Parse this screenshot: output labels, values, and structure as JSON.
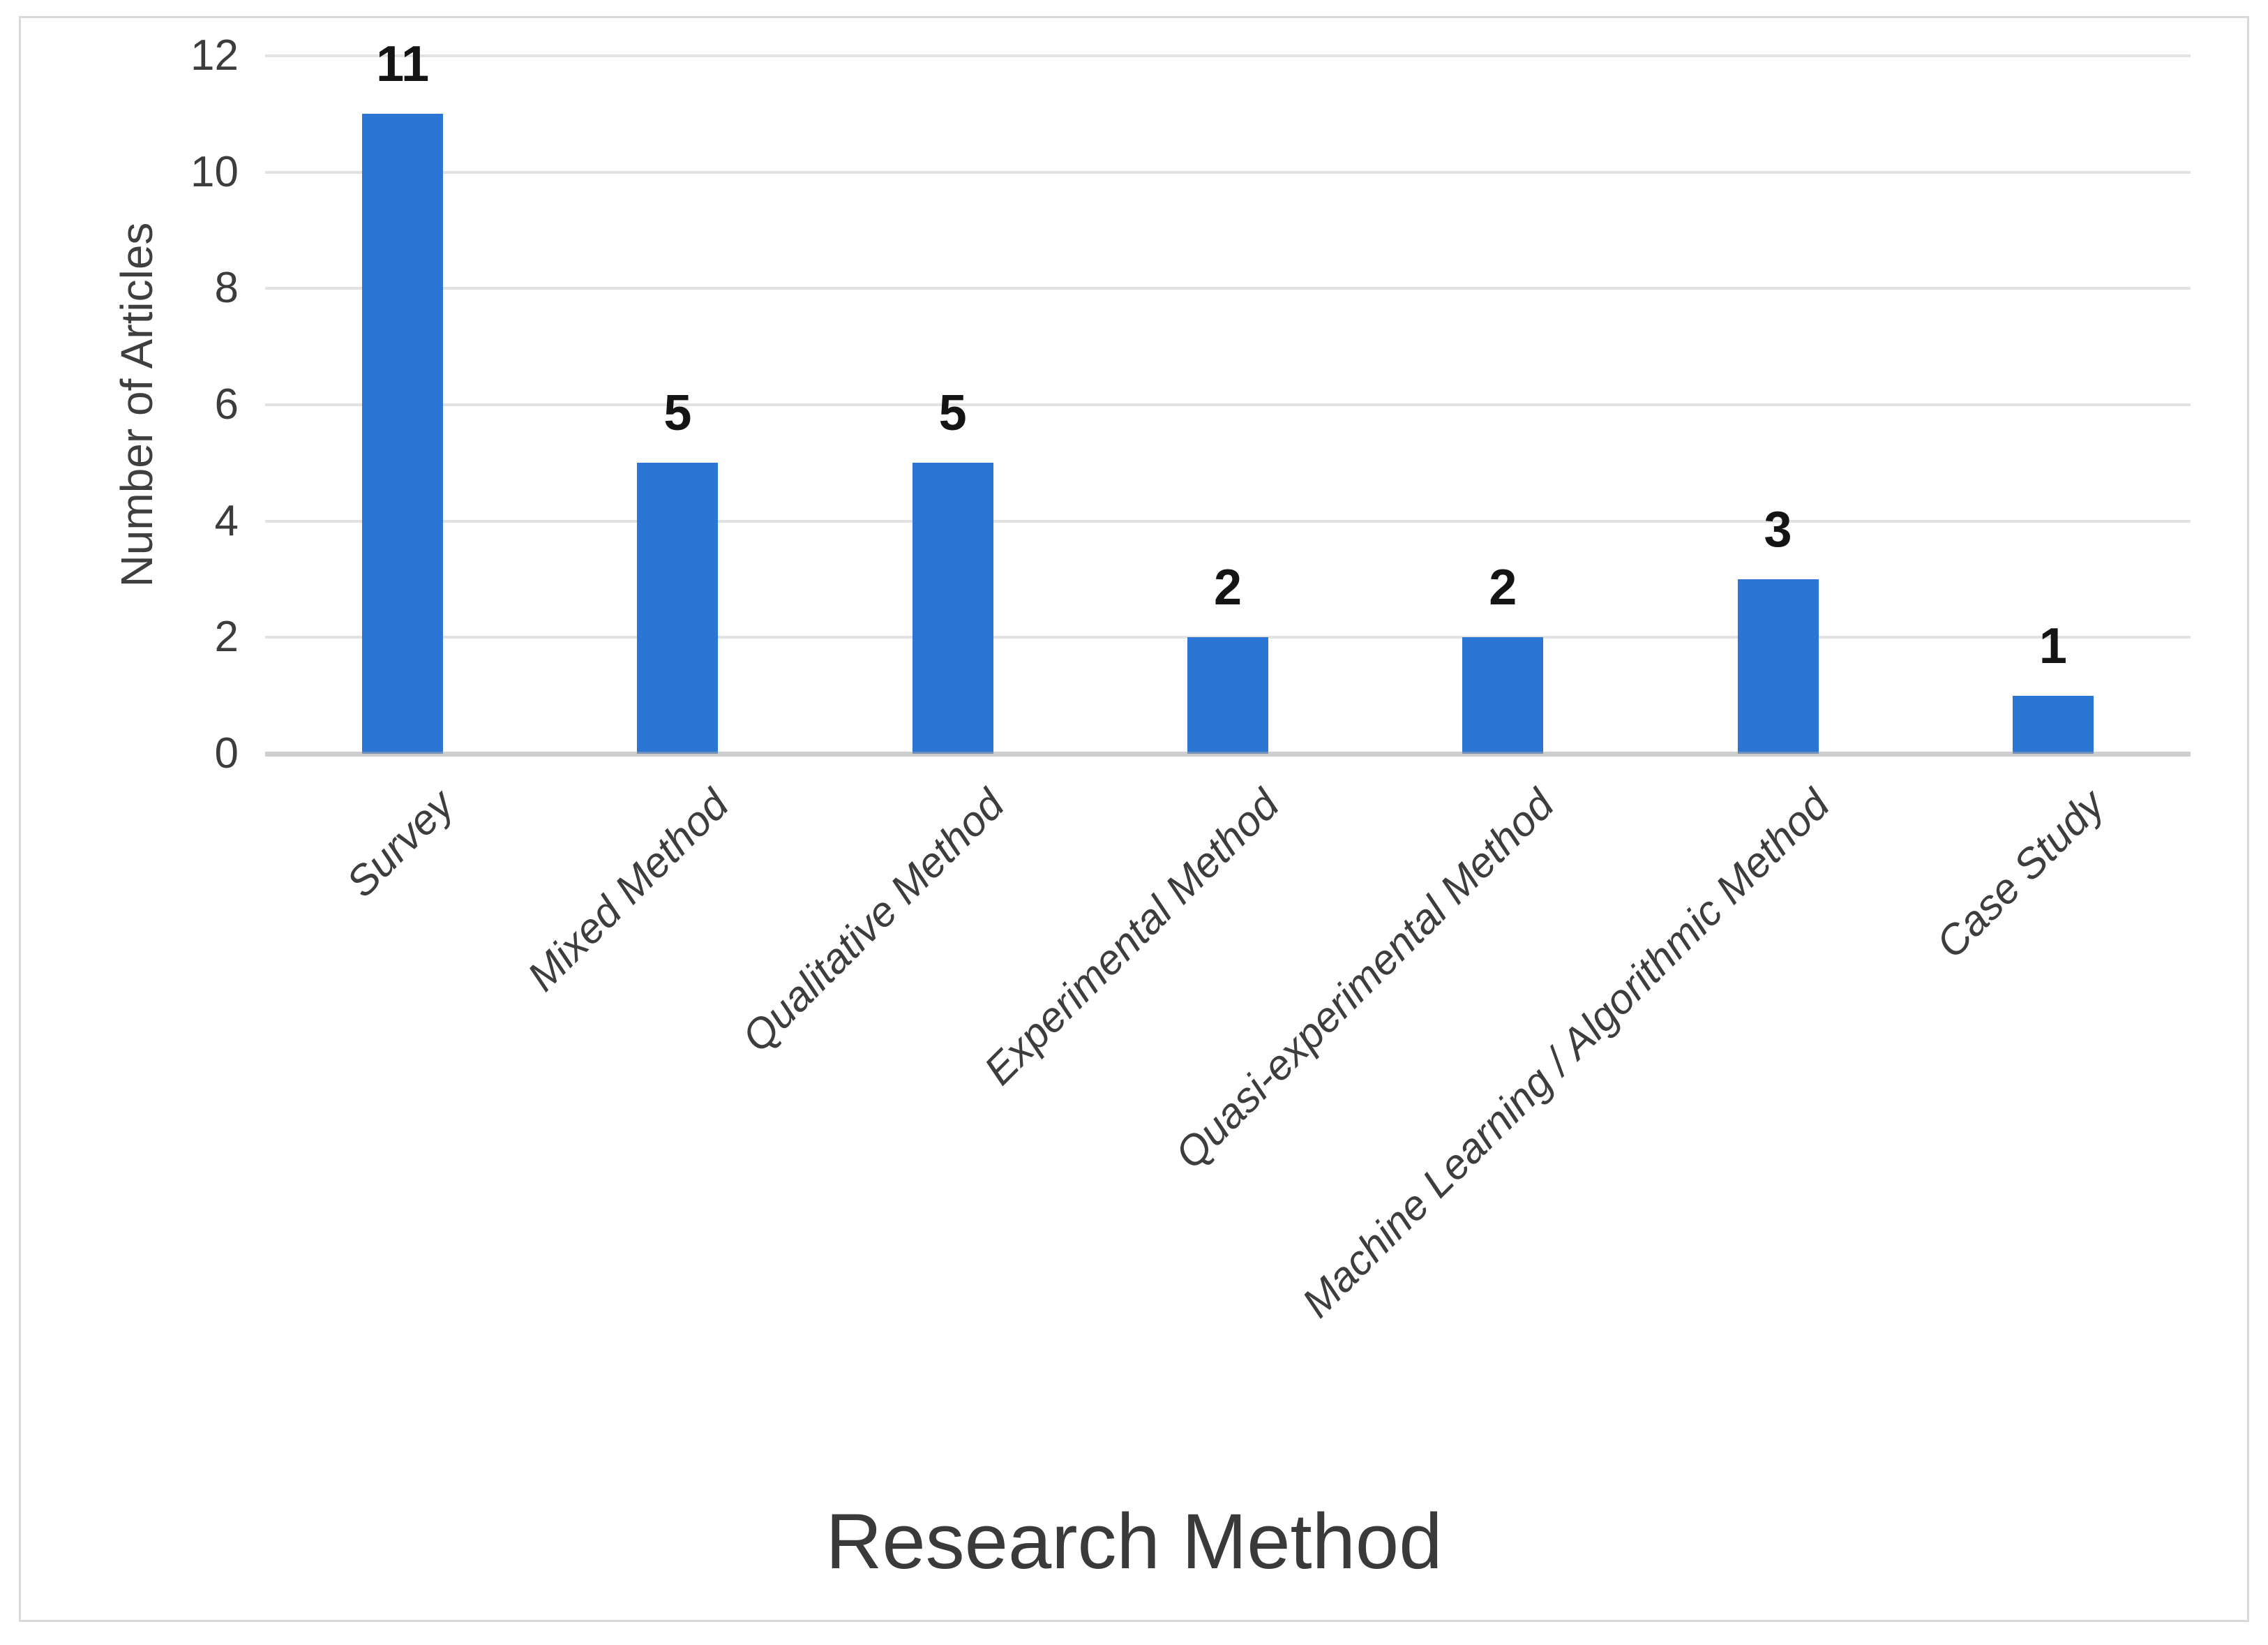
{
  "chart_data": {
    "type": "bar",
    "title": "",
    "categories": [
      "Survey",
      "Mixed Method",
      "Qualitative Method",
      "Experimental Method",
      "Quasi-experimental Method",
      "Machine Learning / Algorithmic Method",
      "Case Study"
    ],
    "values": [
      11,
      5,
      5,
      2,
      2,
      3,
      1
    ],
    "data_labels": [
      "11",
      "5",
      "5",
      "2",
      "2",
      "3",
      "1"
    ],
    "xlabel": "Research Method",
    "ylabel": "Number of Articles",
    "ylim": [
      0,
      12
    ],
    "yticks": [
      0,
      2,
      4,
      6,
      8,
      10,
      12
    ],
    "grid": "horizontal",
    "legend": "none",
    "category_labels_rotation_deg": -45,
    "colors": {
      "bar": "#2b76d4",
      "gridline": "#e2e2e2",
      "baseline": "rgba(165,165,165,0.55)",
      "frame": "#d9d9d9",
      "tick_text": "#3c3c3c",
      "category_text": "#3d3d3d",
      "y_title_text": "#3f3f3f",
      "x_title_text": "#3a3a3a",
      "value_text": "#141414",
      "background": "#ffffff"
    }
  }
}
